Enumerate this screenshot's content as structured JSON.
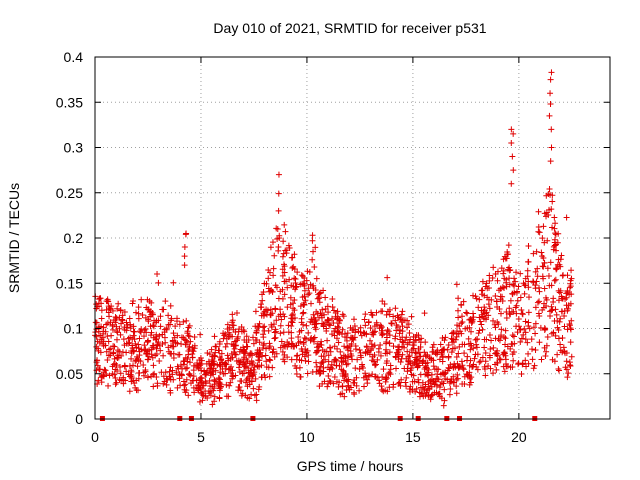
{
  "chart_data": {
    "type": "scatter",
    "title": "Day 010 of 2021, SRMTID for receiver p531",
    "xlabel": "GPS time / hours",
    "ylabel": "SRMTID / TECUs",
    "xlim": [
      0,
      24.3
    ],
    "ylim": [
      0,
      0.4
    ],
    "x_ticks": [
      0,
      5,
      10,
      15,
      20
    ],
    "x_tick_labels": [
      "0",
      "5",
      "10",
      "15",
      "20"
    ],
    "y_ticks": [
      0,
      0.05,
      0.1,
      0.15,
      0.2,
      0.25,
      0.3,
      0.35,
      0.4
    ],
    "y_tick_labels": [
      "0",
      "0.05",
      "0.1",
      "0.15",
      "0.2",
      "0.25",
      "0.3",
      "0.35",
      "0.4"
    ],
    "grid": true,
    "marker": "+",
    "color": "#e00000",
    "profile": [
      [
        0.0,
        0.09
      ],
      [
        0.5,
        0.085
      ],
      [
        1.0,
        0.075
      ],
      [
        1.5,
        0.07
      ],
      [
        2.0,
        0.08
      ],
      [
        2.5,
        0.085
      ],
      [
        3.0,
        0.08
      ],
      [
        3.5,
        0.075
      ],
      [
        4.0,
        0.07
      ],
      [
        4.4,
        0.065
      ],
      [
        4.8,
        0.05
      ],
      [
        5.2,
        0.045
      ],
      [
        5.6,
        0.055
      ],
      [
        6.0,
        0.06
      ],
      [
        6.5,
        0.07
      ],
      [
        7.0,
        0.06
      ],
      [
        7.5,
        0.055
      ],
      [
        8.0,
        0.1
      ],
      [
        8.5,
        0.13
      ],
      [
        8.8,
        0.15
      ],
      [
        9.2,
        0.12
      ],
      [
        9.6,
        0.11
      ],
      [
        10.0,
        0.105
      ],
      [
        10.5,
        0.1
      ],
      [
        11.0,
        0.085
      ],
      [
        11.5,
        0.075
      ],
      [
        12.0,
        0.07
      ],
      [
        12.5,
        0.07
      ],
      [
        13.0,
        0.075
      ],
      [
        13.5,
        0.08
      ],
      [
        14.0,
        0.085
      ],
      [
        14.5,
        0.075
      ],
      [
        15.0,
        0.06
      ],
      [
        15.5,
        0.055
      ],
      [
        16.0,
        0.05
      ],
      [
        16.5,
        0.055
      ],
      [
        17.0,
        0.07
      ],
      [
        17.5,
        0.085
      ],
      [
        18.0,
        0.09
      ],
      [
        18.5,
        0.1
      ],
      [
        19.0,
        0.11
      ],
      [
        19.5,
        0.12
      ],
      [
        20.0,
        0.1
      ],
      [
        20.5,
        0.12
      ],
      [
        21.0,
        0.15
      ],
      [
        21.5,
        0.17
      ],
      [
        22.0,
        0.12
      ],
      [
        22.5,
        0.1
      ]
    ],
    "spikes": [
      {
        "x": 4.25,
        "y": [
          0.205,
          0.204,
          0.19,
          0.18,
          0.17
        ]
      },
      {
        "x": 8.65,
        "y": [
          0.27,
          0.249,
          0.23,
          0.21,
          0.2,
          0.19
        ]
      },
      {
        "x": 10.3,
        "y": [
          0.203,
          0.197,
          0.185,
          0.176,
          0.168
        ]
      },
      {
        "x": 19.7,
        "y": [
          0.32,
          0.315,
          0.305,
          0.29,
          0.275,
          0.26
        ]
      },
      {
        "x": 21.5,
        "y": [
          0.383,
          0.375,
          0.36,
          0.348,
          0.335,
          0.32,
          0.3,
          0.285
        ]
      }
    ],
    "data_gaps_hours": [
      0.35,
      4.0,
      4.55,
      7.45,
      14.4,
      15.25,
      16.6,
      17.2,
      20.75
    ],
    "n_points": 2100
  }
}
